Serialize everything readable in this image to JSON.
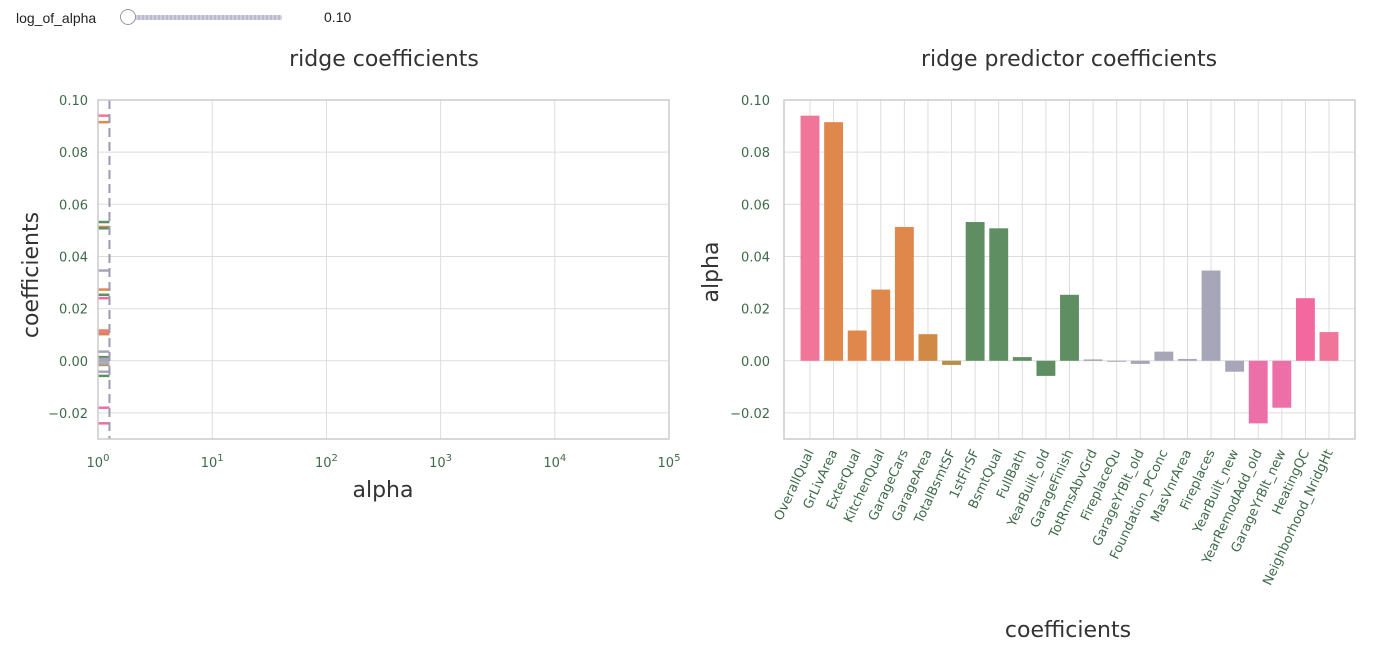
{
  "widget": {
    "label": "log_of_alpha",
    "value": "0.10",
    "slider_fraction": 0.0
  },
  "chart_data": [
    {
      "type": "line",
      "title": "ridge coefficients",
      "xlabel": "alpha",
      "ylabel": "coefficients",
      "xscale": "log",
      "xlim": [
        1,
        100000
      ],
      "ylim": [
        -0.03,
        0.1
      ],
      "x_ticks": [
        {
          "base": "10",
          "exp": "0"
        },
        {
          "base": "10",
          "exp": "1"
        },
        {
          "base": "10",
          "exp": "2"
        },
        {
          "base": "10",
          "exp": "3"
        },
        {
          "base": "10",
          "exp": "4"
        },
        {
          "base": "10",
          "exp": "5"
        }
      ],
      "y_ticks": [
        "−0.02",
        "0.00",
        "0.02",
        "0.04",
        "0.06",
        "0.08",
        "0.10"
      ],
      "y_tick_values": [
        -0.02,
        0,
        0.02,
        0.04,
        0.06,
        0.08,
        0.1
      ],
      "vline_alpha": 1.26,
      "grid": true,
      "series_end_values": [
        0.094,
        0.0915,
        0.0116,
        0.0273,
        0.0513,
        0.0102,
        -0.0016,
        0.0532,
        0.0508,
        0.0014,
        -0.0058,
        0.0253,
        0.0005,
        -0.0002,
        -0.0012,
        0.0035,
        0.0007,
        0.0346,
        -0.0042,
        -0.024,
        -0.018,
        0.024,
        0.011
      ],
      "series_colors": [
        "#f17499",
        "#e0874c",
        "#e0874c",
        "#e0874c",
        "#e0874c",
        "#d08a46",
        "#b59048",
        "#5f8e63",
        "#5f8e63",
        "#5f8e63",
        "#5f8e63",
        "#5f8e63",
        "#9aa4a0",
        "#a6a6b8",
        "#a6a6b8",
        "#a6a6b8",
        "#a6a6b8",
        "#a6a6b8",
        "#a6a6b8",
        "#ec6fa8",
        "#ec6fa8",
        "#f2689f",
        "#f17499"
      ]
    },
    {
      "type": "bar",
      "title": "ridge predictor coefficients",
      "xlabel": "coefficients",
      "ylabel": "alpha",
      "ylim": [
        -0.03,
        0.1
      ],
      "y_ticks": [
        "−0.02",
        "0.00",
        "0.02",
        "0.04",
        "0.06",
        "0.08",
        "0.10"
      ],
      "y_tick_values": [
        -0.02,
        0,
        0.02,
        0.04,
        0.06,
        0.08,
        0.1
      ],
      "grid": true,
      "categories": [
        "OverallQual",
        "GrLivArea",
        "ExterQual",
        "KitchenQual",
        "GarageCars",
        "GarageArea",
        "TotalBsmtSF",
        "1stFlrSF",
        "BsmtQual",
        "FullBath",
        "YearBuilt_old",
        "GarageFinish",
        "TotRmsAbvGrd",
        "FireplaceQu",
        "GarageYrBlt_old",
        "Foundation_PConc",
        "MasVnrArea",
        "Fireplaces",
        "YearBuilt_new",
        "YearRemodAdd_old",
        "GarageYrBlt_new",
        "HeatingQC",
        "Neighborhood_NridgHt"
      ],
      "values": [
        0.094,
        0.0915,
        0.0116,
        0.0273,
        0.0513,
        0.0102,
        -0.0016,
        0.0532,
        0.0508,
        0.0014,
        -0.0058,
        0.0253,
        0.0005,
        -0.0002,
        -0.0012,
        0.0035,
        0.0007,
        0.0346,
        -0.0042,
        -0.024,
        -0.018,
        0.024,
        0.011
      ],
      "colors": [
        "#f17499",
        "#e0874c",
        "#e0874c",
        "#e0874c",
        "#e0874c",
        "#d08a46",
        "#b59048",
        "#5f8e63",
        "#5f8e63",
        "#5f8e63",
        "#5f8e63",
        "#5f8e63",
        "#9aa4a0",
        "#a6a6b8",
        "#a6a6b8",
        "#a6a6b8",
        "#a6a6b8",
        "#a6a6b8",
        "#a6a6b8",
        "#ec6fa8",
        "#ec6fa8",
        "#f2689f",
        "#f17499"
      ]
    }
  ]
}
